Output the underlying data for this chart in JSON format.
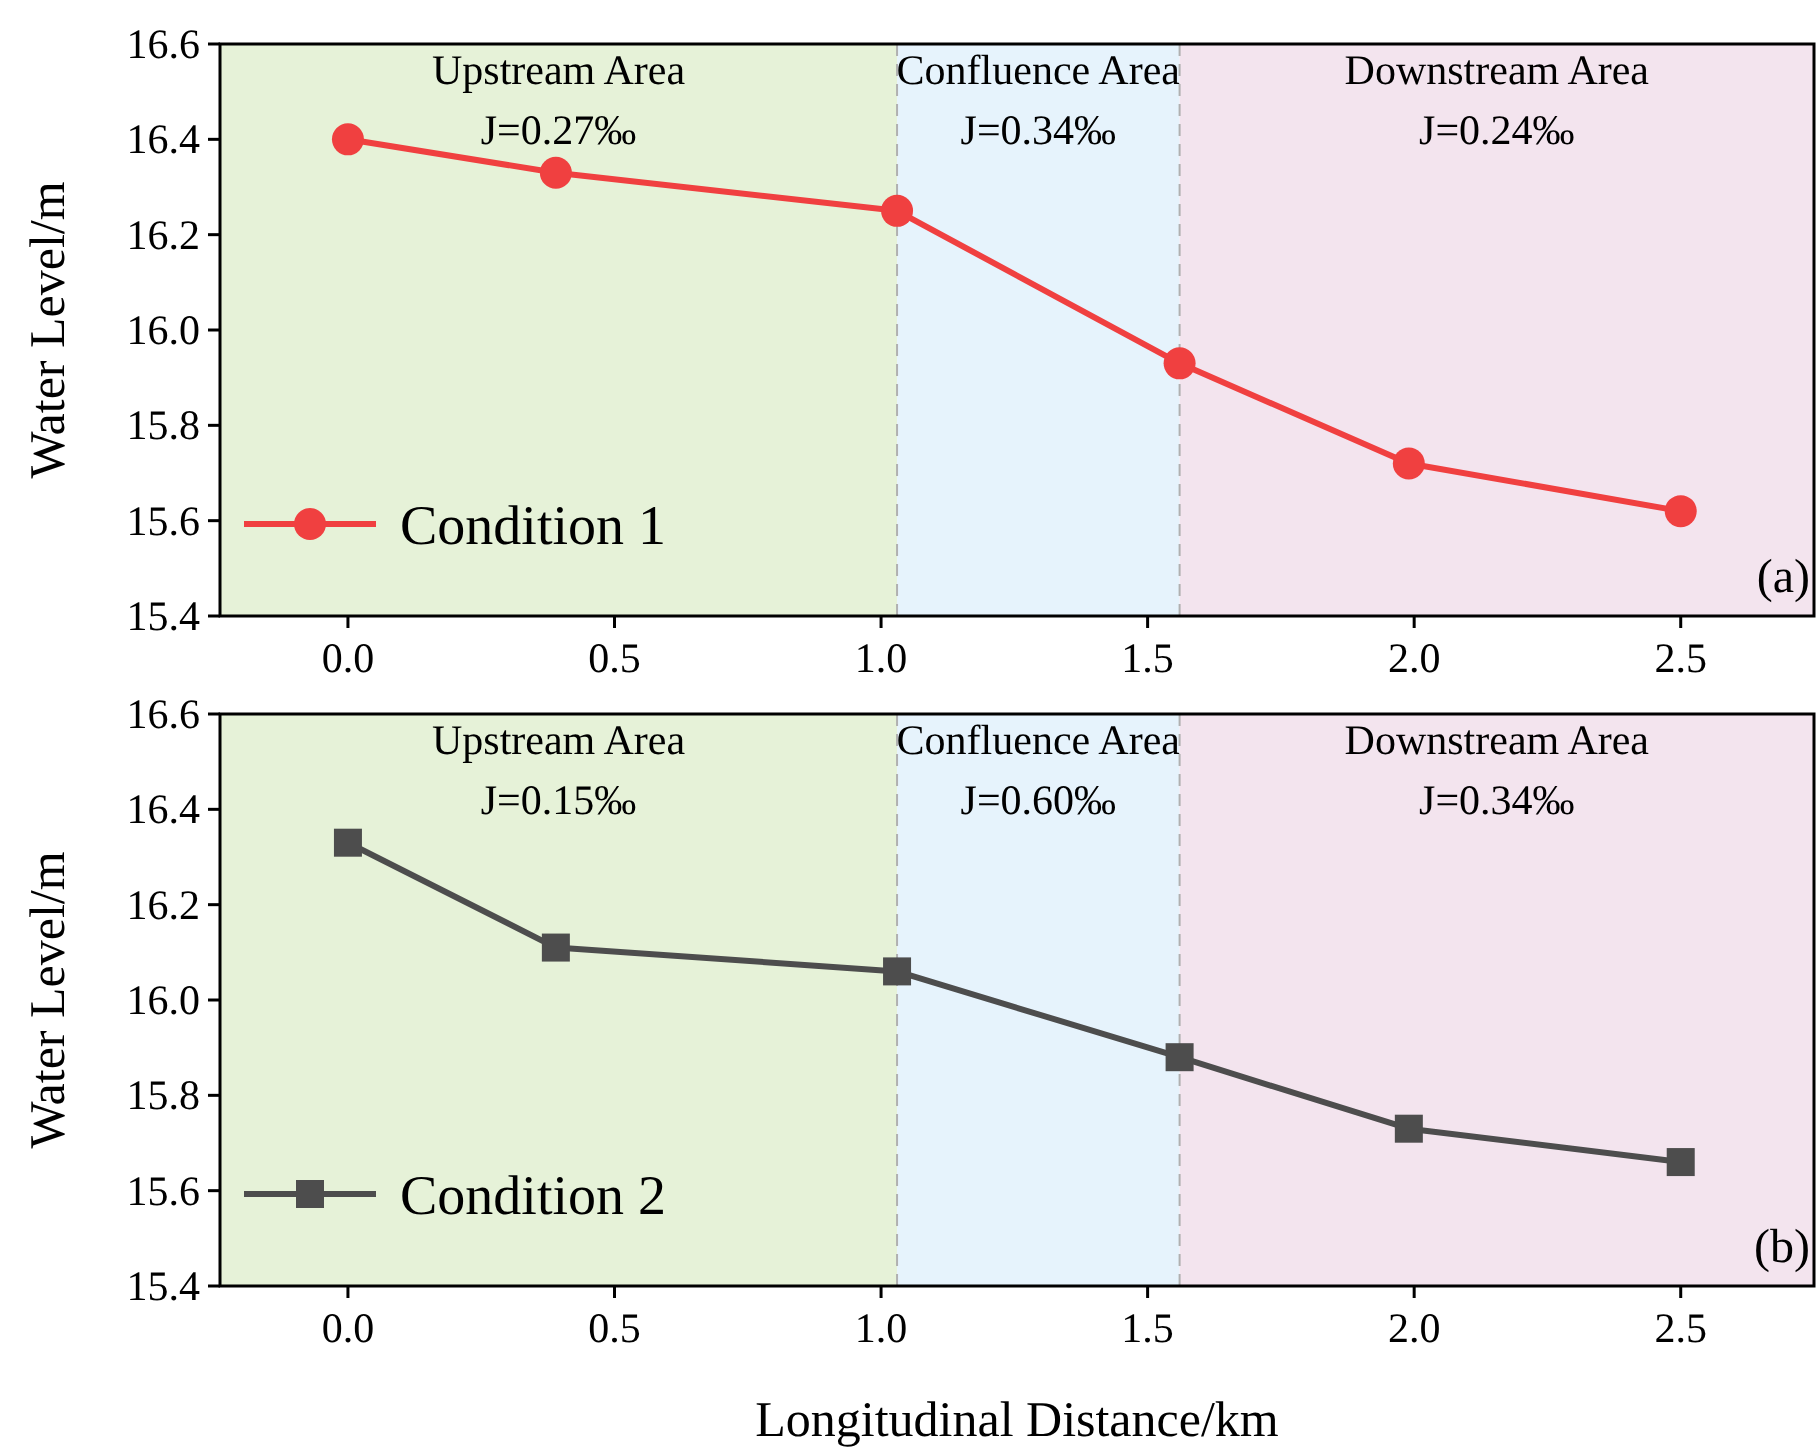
{
  "chart_data": [
    {
      "type": "line",
      "ylabel": "Water Level/m",
      "x": [
        0,
        0.39,
        1.03,
        1.56,
        1.99,
        2.5
      ],
      "series": [
        {
          "name": "Condition 1",
          "color": "#f04040",
          "values": [
            16.4,
            16.33,
            16.25,
            15.93,
            15.72,
            15.62
          ]
        }
      ],
      "xlim": [
        -0.24,
        2.75
      ],
      "xticks": [
        {
          "value": 0,
          "label": "0.0"
        },
        {
          "value": 0.5,
          "label": "0.5"
        },
        {
          "value": 1,
          "label": "1.0"
        },
        {
          "value": 1.5,
          "label": "1.5"
        },
        {
          "value": 2,
          "label": "2.0"
        },
        {
          "value": 2.5,
          "label": "2.5"
        }
      ],
      "ylim": [
        15.4,
        16.6
      ],
      "yticks": [
        {
          "value": 15.4,
          "label": "15.4"
        },
        {
          "value": 15.6,
          "label": "15.6"
        },
        {
          "value": 15.8,
          "label": "15.8"
        },
        {
          "value": 16,
          "label": "16.0"
        },
        {
          "value": 16.2,
          "label": "16.2"
        },
        {
          "value": 16.4,
          "label": "16.4"
        },
        {
          "value": 16.6,
          "label": "16.6"
        }
      ],
      "bands": [
        {
          "axis": "x",
          "from": -0.24,
          "to": 1.03,
          "label": "Upstream Area\nJ=0.27‰",
          "color": "#e6f2d8"
        },
        {
          "axis": "x",
          "from": 1.03,
          "to": 1.56,
          "label": "Confluence Area\nJ=0.34‰",
          "color": "#e6f3fc"
        },
        {
          "axis": "x",
          "from": 1.56,
          "to": 2.75,
          "label": "Downstream Area\nJ=0.24‰",
          "color": "#f3e4ee"
        }
      ],
      "ref_lines": [
        {
          "axis": "x",
          "value": 1.03,
          "color": "#b0b0b0",
          "line_style": "dashed"
        },
        {
          "axis": "x",
          "value": 1.56,
          "color": "#b0b0b0",
          "line_style": "dashed"
        }
      ],
      "annotations": [
        "(a)"
      ],
      "marker": "circle",
      "legend": "bottom left",
      "grid": false
    },
    {
      "type": "line",
      "ylabel": "Water Level/m",
      "xlabel": "Longitudinal Distance/km",
      "x": [
        0,
        0.39,
        1.03,
        1.56,
        1.99,
        2.5
      ],
      "series": [
        {
          "name": "Condition 2",
          "color": "#4d4d4d",
          "values": [
            16.33,
            16.11,
            16.06,
            15.88,
            15.73,
            15.66
          ]
        }
      ],
      "xlim": [
        -0.24,
        2.75
      ],
      "xticks": [
        {
          "value": 0,
          "label": "0.0"
        },
        {
          "value": 0.5,
          "label": "0.5"
        },
        {
          "value": 1,
          "label": "1.0"
        },
        {
          "value": 1.5,
          "label": "1.5"
        },
        {
          "value": 2,
          "label": "2.0"
        },
        {
          "value": 2.5,
          "label": "2.5"
        }
      ],
      "ylim": [
        15.4,
        16.6
      ],
      "yticks": [
        {
          "value": 15.4,
          "label": "15.4"
        },
        {
          "value": 15.6,
          "label": "15.6"
        },
        {
          "value": 15.8,
          "label": "15.8"
        },
        {
          "value": 16,
          "label": "16.0"
        },
        {
          "value": 16.2,
          "label": "16.2"
        },
        {
          "value": 16.4,
          "label": "16.4"
        },
        {
          "value": 16.6,
          "label": "16.6"
        }
      ],
      "bands": [
        {
          "axis": "x",
          "from": -0.24,
          "to": 1.03,
          "label": "Upstream Area\nJ=0.15‰",
          "color": "#e6f2d8"
        },
        {
          "axis": "x",
          "from": 1.03,
          "to": 1.56,
          "label": "Confluence Area\nJ=0.60‰",
          "color": "#e6f3fc"
        },
        {
          "axis": "x",
          "from": 1.56,
          "to": 2.75,
          "label": "Downstream Area\nJ=0.34‰",
          "color": "#f3e4ee"
        }
      ],
      "ref_lines": [
        {
          "axis": "x",
          "value": 1.03,
          "color": "#b0b0b0",
          "line_style": "dashed"
        },
        {
          "axis": "x",
          "value": 1.56,
          "color": "#b0b0b0",
          "line_style": "dashed"
        }
      ],
      "annotations": [
        "(b)"
      ],
      "marker": "square",
      "legend": "bottom left",
      "grid": false
    }
  ]
}
